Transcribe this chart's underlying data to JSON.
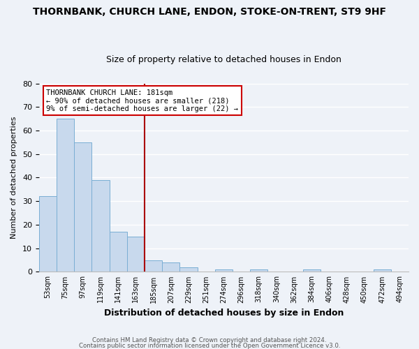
{
  "title": "THORNBANK, CHURCH LANE, ENDON, STOKE-ON-TRENT, ST9 9HF",
  "subtitle": "Size of property relative to detached houses in Endon",
  "xlabel": "Distribution of detached houses by size in Endon",
  "ylabel": "Number of detached properties",
  "bin_labels": [
    "53sqm",
    "75sqm",
    "97sqm",
    "119sqm",
    "141sqm",
    "163sqm",
    "185sqm",
    "207sqm",
    "229sqm",
    "251sqm",
    "274sqm",
    "296sqm",
    "318sqm",
    "340sqm",
    "362sqm",
    "384sqm",
    "406sqm",
    "428sqm",
    "450sqm",
    "472sqm",
    "494sqm"
  ],
  "bar_heights": [
    32,
    65,
    55,
    39,
    17,
    15,
    5,
    4,
    2,
    0,
    1,
    0,
    1,
    0,
    0,
    1,
    0,
    0,
    0,
    1,
    0
  ],
  "bar_color": "#c8d9ed",
  "bar_edge_color": "#7aaed4",
  "vline_x": 6,
  "vline_color": "#aa0000",
  "annotation_title": "THORNBANK CHURCH LANE: 181sqm",
  "annotation_line1": "← 90% of detached houses are smaller (218)",
  "annotation_line2": "9% of semi-detached houses are larger (22) →",
  "annotation_box_edge": "#cc0000",
  "ylim": [
    0,
    80
  ],
  "yticks": [
    0,
    10,
    20,
    30,
    40,
    50,
    60,
    70,
    80
  ],
  "footer1": "Contains HM Land Registry data © Crown copyright and database right 2024.",
  "footer2": "Contains public sector information licensed under the Open Government Licence v3.0.",
  "bg_color": "#eef2f8",
  "grid_color": "#ffffff",
  "fig_width": 6.0,
  "fig_height": 5.0
}
